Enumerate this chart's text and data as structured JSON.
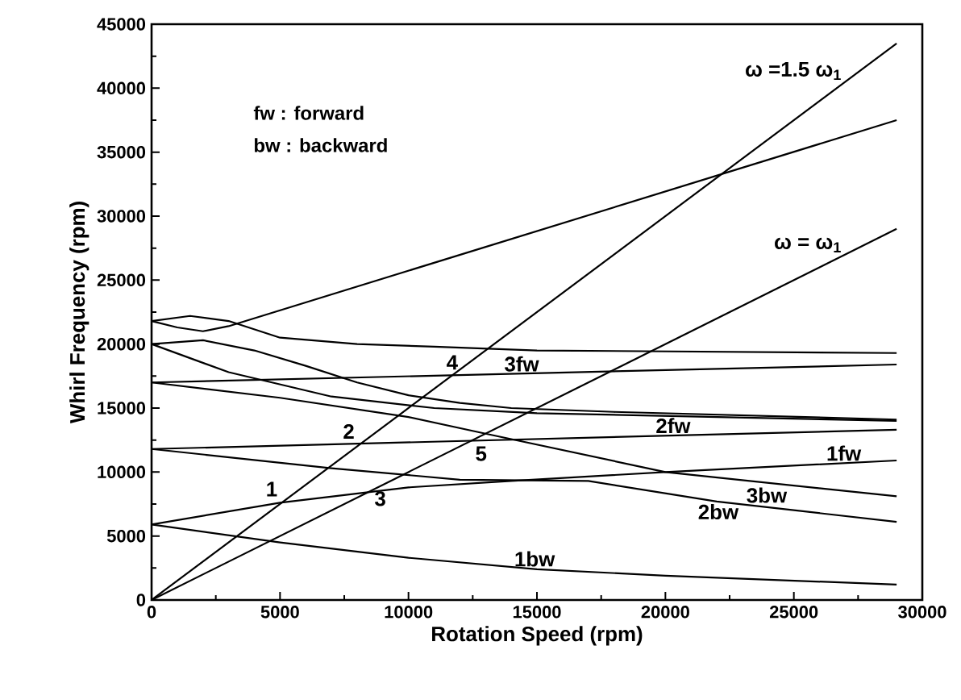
{
  "chart_data": {
    "type": "line",
    "xlabel": "Rotation Speed (rpm)",
    "ylabel": "Whirl Frequency (rpm)",
    "xlim": [
      0,
      30000
    ],
    "xticks": [
      0,
      5000,
      10000,
      15000,
      20000,
      25000,
      30000
    ],
    "ylim": [
      0,
      45000
    ],
    "yticks": [
      0,
      5000,
      10000,
      15000,
      20000,
      25000,
      30000,
      35000,
      40000,
      45000
    ],
    "grid": false,
    "marker": "none",
    "line_style": "solid",
    "series": [
      {
        "name": "ω =1.5 ω$_{1}$",
        "color": "#000000",
        "x": [
          0,
          29000
        ],
        "values": [
          0,
          43500
        ]
      },
      {
        "name": "ω = ω$_{1}$",
        "color": "#000000",
        "x": [
          0,
          29000
        ],
        "values": [
          0,
          29000
        ]
      },
      {
        "color": "#000000",
        "x": [
          0,
          1000,
          2000,
          3000,
          29000
        ],
        "values": [
          21800,
          21300,
          21000,
          21400,
          37500
        ]
      },
      {
        "color": "#000000",
        "x": [
          0,
          1500,
          3000,
          5000,
          8000,
          11000,
          15000,
          29000
        ],
        "values": [
          21800,
          22200,
          21800,
          20500,
          20000,
          19800,
          19500,
          19300
        ]
      },
      {
        "name": "3fw",
        "color": "#000000",
        "x": [
          0,
          29000
        ],
        "values": [
          17000,
          18400
        ]
      },
      {
        "color": "#000000",
        "x": [
          0,
          2000,
          4000,
          6000,
          8000,
          10000,
          12000,
          14000,
          18000,
          29000
        ],
        "values": [
          20000,
          20300,
          19500,
          18300,
          17000,
          16000,
          15400,
          15000,
          14700,
          14100
        ]
      },
      {
        "color": "#000000",
        "x": [
          0,
          3000,
          7000,
          11000,
          15000,
          29000
        ],
        "values": [
          20000,
          17800,
          15900,
          15000,
          14600,
          14000
        ]
      },
      {
        "name": "3bw",
        "color": "#000000",
        "x": [
          0,
          5000,
          10000,
          13000,
          20000,
          29000
        ],
        "values": [
          17000,
          15800,
          14300,
          13000,
          10000,
          8100
        ]
      },
      {
        "name": "2fw",
        "color": "#000000",
        "x": [
          0,
          29000
        ],
        "values": [
          11800,
          13300
        ]
      },
      {
        "name": "2bw",
        "color": "#000000",
        "x": [
          0,
          7000,
          12000,
          17000,
          22000,
          29000
        ],
        "values": [
          11800,
          10300,
          9400,
          9300,
          7700,
          6100
        ]
      },
      {
        "name": "1fw",
        "color": "#000000",
        "x": [
          0,
          5000,
          10000,
          14000,
          20000,
          29000
        ],
        "values": [
          5900,
          7600,
          8800,
          9300,
          10000,
          10900
        ]
      },
      {
        "name": "1bw",
        "color": "#000000",
        "x": [
          0,
          5000,
          10000,
          15000,
          20000,
          29000
        ],
        "values": [
          5900,
          4500,
          3300,
          2400,
          1900,
          1200
        ]
      }
    ],
    "annotations": [
      "fw  : forward",
      "bw : backward",
      {
        "text": "1",
        "x": 5100,
        "y": 7700
      },
      {
        "text": "2",
        "x": 8100,
        "y": 12200
      },
      {
        "text": "3",
        "x": 8900,
        "y": 8900
      },
      {
        "text": "4",
        "x": 11700,
        "y": 17600
      },
      {
        "text": "5",
        "x": 12400,
        "y": 12400
      }
    ]
  }
}
